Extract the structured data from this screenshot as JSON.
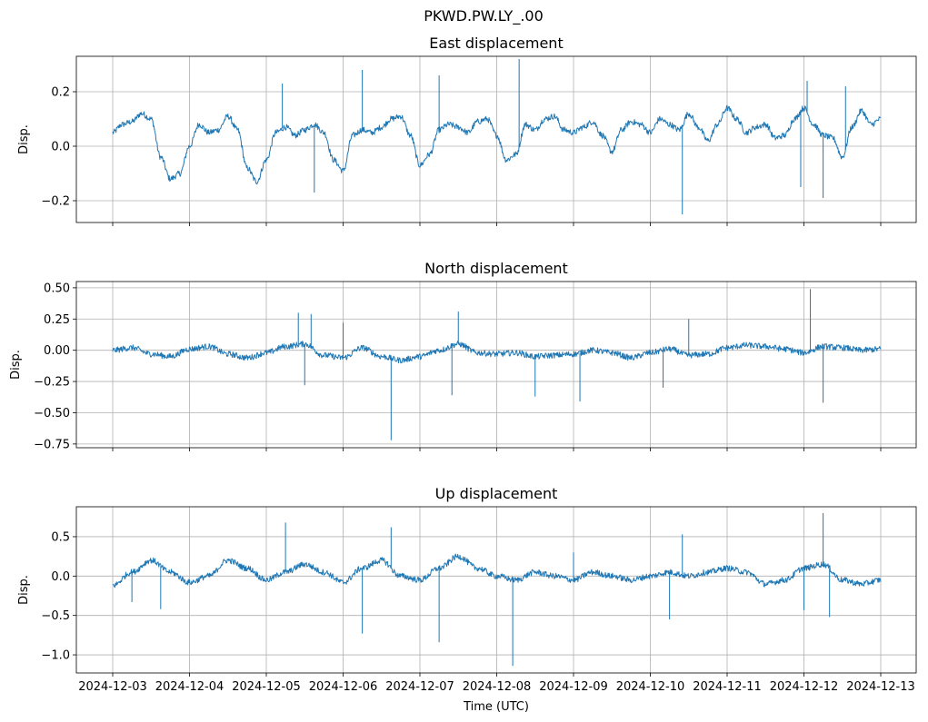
{
  "figure": {
    "suptitle": "PKWD.PW.LY_.00",
    "xlabel": "Time (UTC)"
  },
  "chart_data": [
    {
      "type": "line",
      "title": "East displacement",
      "ylabel": "Disp.",
      "x_range": [
        "2024-12-03",
        "2024-12-13"
      ],
      "ylim": [
        -0.28,
        0.33
      ],
      "yticks": [
        -0.2,
        0.0,
        0.2
      ],
      "ytick_labels": [
        "−0.2",
        "0.0",
        "0.2"
      ],
      "grid": true,
      "series": [
        {
          "color": "#1f77b4",
          "x": [
            "2024-12-03T00:00",
            "2024-12-03T03:00",
            "2024-12-03T06:00",
            "2024-12-03T09:00",
            "2024-12-03T12:00",
            "2024-12-03T15:00",
            "2024-12-03T18:00",
            "2024-12-03T21:00",
            "2024-12-04T00:00",
            "2024-12-04T03:00",
            "2024-12-04T06:00",
            "2024-12-04T09:00",
            "2024-12-04T12:00",
            "2024-12-04T15:00",
            "2024-12-04T18:00",
            "2024-12-04T21:00",
            "2024-12-05T00:00",
            "2024-12-05T03:00",
            "2024-12-05T06:00",
            "2024-12-05T09:00",
            "2024-12-05T12:00",
            "2024-12-05T15:00",
            "2024-12-05T18:00",
            "2024-12-05T21:00",
            "2024-12-06T00:00",
            "2024-12-06T03:00",
            "2024-12-06T06:00",
            "2024-12-06T09:00",
            "2024-12-06T12:00",
            "2024-12-06T15:00",
            "2024-12-06T18:00",
            "2024-12-06T21:00",
            "2024-12-07T00:00",
            "2024-12-07T03:00",
            "2024-12-07T06:00",
            "2024-12-07T09:00",
            "2024-12-07T12:00",
            "2024-12-07T15:00",
            "2024-12-07T18:00",
            "2024-12-07T21:00",
            "2024-12-08T00:00",
            "2024-12-08T03:00",
            "2024-12-08T06:00",
            "2024-12-08T09:00",
            "2024-12-08T12:00",
            "2024-12-08T15:00",
            "2024-12-08T18:00",
            "2024-12-08T21:00",
            "2024-12-09T00:00",
            "2024-12-09T03:00",
            "2024-12-09T06:00",
            "2024-12-09T09:00",
            "2024-12-09T12:00",
            "2024-12-09T15:00",
            "2024-12-09T18:00",
            "2024-12-09T21:00",
            "2024-12-10T00:00",
            "2024-12-10T03:00",
            "2024-12-10T06:00",
            "2024-12-10T09:00",
            "2024-12-10T12:00",
            "2024-12-10T15:00",
            "2024-12-10T18:00",
            "2024-12-10T21:00",
            "2024-12-11T00:00",
            "2024-12-11T03:00",
            "2024-12-11T06:00",
            "2024-12-11T09:00",
            "2024-12-11T12:00",
            "2024-12-11T15:00",
            "2024-12-11T18:00",
            "2024-12-11T21:00",
            "2024-12-12T00:00",
            "2024-12-12T03:00",
            "2024-12-12T06:00",
            "2024-12-12T09:00",
            "2024-12-12T12:00",
            "2024-12-12T15:00",
            "2024-12-12T18:00",
            "2024-12-12T21:00",
            "2024-12-13T00:00"
          ],
          "y": [
            0.05,
            0.08,
            0.09,
            0.12,
            0.1,
            -0.04,
            -0.12,
            -0.1,
            0.0,
            0.08,
            0.05,
            0.06,
            0.11,
            0.06,
            -0.08,
            -0.13,
            -0.05,
            0.05,
            0.07,
            0.04,
            0.06,
            0.08,
            0.05,
            -0.05,
            -0.09,
            0.04,
            0.06,
            0.05,
            0.07,
            0.1,
            0.11,
            0.04,
            -0.07,
            -0.03,
            0.06,
            0.08,
            0.07,
            0.05,
            0.09,
            0.1,
            0.04,
            -0.05,
            -0.03,
            0.08,
            0.06,
            0.1,
            0.11,
            0.06,
            0.05,
            0.07,
            0.09,
            0.04,
            -0.02,
            0.06,
            0.09,
            0.08,
            0.05,
            0.1,
            0.08,
            0.06,
            0.12,
            0.07,
            0.02,
            0.08,
            0.14,
            0.1,
            0.05,
            0.07,
            0.08,
            0.03,
            0.04,
            0.1,
            0.14,
            0.08,
            0.04,
            0.03,
            -0.04,
            0.07,
            0.13,
            0.08,
            0.1
          ]
        }
      ],
      "spikes": [
        {
          "x": "2024-12-05T05:00",
          "y": 0.23
        },
        {
          "x": "2024-12-05T15:00",
          "y": -0.17
        },
        {
          "x": "2024-12-06T06:00",
          "y": 0.28
        },
        {
          "x": "2024-12-07T06:00",
          "y": 0.26
        },
        {
          "x": "2024-12-08T07:00",
          "y": 0.32
        },
        {
          "x": "2024-12-10T10:00",
          "y": -0.25
        },
        {
          "x": "2024-12-11T23:00",
          "y": -0.15
        },
        {
          "x": "2024-12-12T01:00",
          "y": 0.24
        },
        {
          "x": "2024-12-12T06:00",
          "y": -0.19
        },
        {
          "x": "2024-12-12T13:00",
          "y": 0.22
        }
      ],
      "xtick_labels_shown": false
    },
    {
      "type": "line",
      "title": "North displacement",
      "ylabel": "Disp.",
      "x_range": [
        "2024-12-03",
        "2024-12-13"
      ],
      "ylim": [
        -0.78,
        0.55
      ],
      "yticks": [
        -0.75,
        -0.5,
        -0.25,
        0.0,
        0.25,
        0.5
      ],
      "ytick_labels": [
        "−0.75",
        "−0.50",
        "−0.25",
        "0.00",
        "0.25",
        "0.50"
      ],
      "grid": true,
      "series": [
        {
          "color": "#1f77b4",
          "x": [
            "2024-12-03T00:00",
            "2024-12-03T06:00",
            "2024-12-03T12:00",
            "2024-12-03T18:00",
            "2024-12-04T00:00",
            "2024-12-04T06:00",
            "2024-12-04T12:00",
            "2024-12-04T18:00",
            "2024-12-05T00:00",
            "2024-12-05T06:00",
            "2024-12-05T12:00",
            "2024-12-05T18:00",
            "2024-12-06T00:00",
            "2024-12-06T06:00",
            "2024-12-06T12:00",
            "2024-12-06T18:00",
            "2024-12-07T00:00",
            "2024-12-07T06:00",
            "2024-12-07T12:00",
            "2024-12-07T18:00",
            "2024-12-08T00:00",
            "2024-12-08T06:00",
            "2024-12-08T12:00",
            "2024-12-08T18:00",
            "2024-12-09T00:00",
            "2024-12-09T06:00",
            "2024-12-09T12:00",
            "2024-12-09T18:00",
            "2024-12-10T00:00",
            "2024-12-10T06:00",
            "2024-12-10T12:00",
            "2024-12-10T18:00",
            "2024-12-11T00:00",
            "2024-12-11T06:00",
            "2024-12-11T12:00",
            "2024-12-11T18:00",
            "2024-12-12T00:00",
            "2024-12-12T06:00",
            "2024-12-12T12:00",
            "2024-12-12T18:00",
            "2024-12-13T00:00"
          ],
          "y": [
            0.0,
            0.02,
            -0.03,
            -0.05,
            0.01,
            0.03,
            -0.03,
            -0.06,
            -0.02,
            0.03,
            0.05,
            -0.04,
            -0.06,
            0.02,
            -0.05,
            -0.08,
            -0.05,
            0.0,
            0.05,
            -0.02,
            -0.03,
            -0.02,
            -0.05,
            -0.04,
            -0.03,
            0.0,
            -0.02,
            -0.06,
            -0.02,
            0.01,
            -0.04,
            -0.03,
            0.02,
            0.04,
            0.03,
            0.01,
            -0.02,
            0.03,
            0.02,
            0.0,
            0.01
          ]
        }
      ],
      "spikes": [
        {
          "x": "2024-12-05T10:00",
          "y": 0.3
        },
        {
          "x": "2024-12-05T12:00",
          "y": -0.28
        },
        {
          "x": "2024-12-05T14:00",
          "y": 0.29
        },
        {
          "x": "2024-12-06T00:00",
          "y": 0.22
        },
        {
          "x": "2024-12-06T15:00",
          "y": -0.72
        },
        {
          "x": "2024-12-07T10:00",
          "y": -0.36
        },
        {
          "x": "2024-12-07T12:00",
          "y": 0.31
        },
        {
          "x": "2024-12-08T12:00",
          "y": -0.37
        },
        {
          "x": "2024-12-09T02:00",
          "y": -0.41
        },
        {
          "x": "2024-12-10T04:00",
          "y": -0.3
        },
        {
          "x": "2024-12-10T12:00",
          "y": 0.25
        },
        {
          "x": "2024-12-12T02:00",
          "y": 0.49
        },
        {
          "x": "2024-12-12T06:00",
          "y": -0.42
        }
      ],
      "xtick_labels_shown": false
    },
    {
      "type": "line",
      "title": "Up displacement",
      "ylabel": "Disp.",
      "x_range": [
        "2024-12-03",
        "2024-12-13"
      ],
      "ylim": [
        -1.23,
        0.88
      ],
      "yticks": [
        -1.0,
        -0.5,
        0.0,
        0.5
      ],
      "ytick_labels": [
        "−1.0",
        "−0.5",
        "0.0",
        "0.5"
      ],
      "grid": true,
      "series": [
        {
          "color": "#1f77b4",
          "x": [
            "2024-12-03T00:00",
            "2024-12-03T06:00",
            "2024-12-03T12:00",
            "2024-12-03T18:00",
            "2024-12-04T00:00",
            "2024-12-04T06:00",
            "2024-12-04T12:00",
            "2024-12-04T18:00",
            "2024-12-05T00:00",
            "2024-12-05T06:00",
            "2024-12-05T12:00",
            "2024-12-05T18:00",
            "2024-12-06T00:00",
            "2024-12-06T06:00",
            "2024-12-06T12:00",
            "2024-12-06T18:00",
            "2024-12-07T00:00",
            "2024-12-07T06:00",
            "2024-12-07T12:00",
            "2024-12-07T18:00",
            "2024-12-08T00:00",
            "2024-12-08T06:00",
            "2024-12-08T12:00",
            "2024-12-08T18:00",
            "2024-12-09T00:00",
            "2024-12-09T06:00",
            "2024-12-09T12:00",
            "2024-12-09T18:00",
            "2024-12-10T00:00",
            "2024-12-10T06:00",
            "2024-12-10T12:00",
            "2024-12-10T18:00",
            "2024-12-11T00:00",
            "2024-12-11T06:00",
            "2024-12-11T12:00",
            "2024-12-11T18:00",
            "2024-12-12T00:00",
            "2024-12-12T06:00",
            "2024-12-12T12:00",
            "2024-12-12T18:00",
            "2024-12-13T00:00"
          ],
          "y": [
            -0.12,
            0.05,
            0.2,
            0.05,
            -0.08,
            0.0,
            0.2,
            0.1,
            -0.05,
            0.05,
            0.15,
            0.05,
            -0.08,
            0.1,
            0.2,
            0.0,
            -0.05,
            0.1,
            0.25,
            0.1,
            0.0,
            -0.05,
            0.05,
            0.0,
            -0.05,
            0.05,
            0.0,
            -0.05,
            0.0,
            0.05,
            0.0,
            0.05,
            0.1,
            0.05,
            -0.1,
            -0.05,
            0.1,
            0.15,
            -0.05,
            -0.1,
            -0.05
          ]
        }
      ],
      "spikes": [
        {
          "x": "2024-12-03T06:00",
          "y": -0.33
        },
        {
          "x": "2024-12-03T15:00",
          "y": -0.42
        },
        {
          "x": "2024-12-05T06:00",
          "y": 0.68
        },
        {
          "x": "2024-12-06T06:00",
          "y": -0.73
        },
        {
          "x": "2024-12-06T15:00",
          "y": 0.62
        },
        {
          "x": "2024-12-07T06:00",
          "y": -0.84
        },
        {
          "x": "2024-12-08T05:00",
          "y": -1.14
        },
        {
          "x": "2024-12-09T00:00",
          "y": 0.3
        },
        {
          "x": "2024-12-10T06:00",
          "y": -0.55
        },
        {
          "x": "2024-12-10T10:00",
          "y": 0.53
        },
        {
          "x": "2024-12-12T00:00",
          "y": -0.43
        },
        {
          "x": "2024-12-12T06:00",
          "y": 0.8
        },
        {
          "x": "2024-12-12T08:00",
          "y": -0.52
        }
      ],
      "xtick_labels_shown": true,
      "xtick_labels": [
        "2024-12-03",
        "2024-12-04",
        "2024-12-05",
        "2024-12-06",
        "2024-12-07",
        "2024-12-08",
        "2024-12-09",
        "2024-12-10",
        "2024-12-11",
        "2024-12-12",
        "2024-12-13"
      ]
    }
  ]
}
